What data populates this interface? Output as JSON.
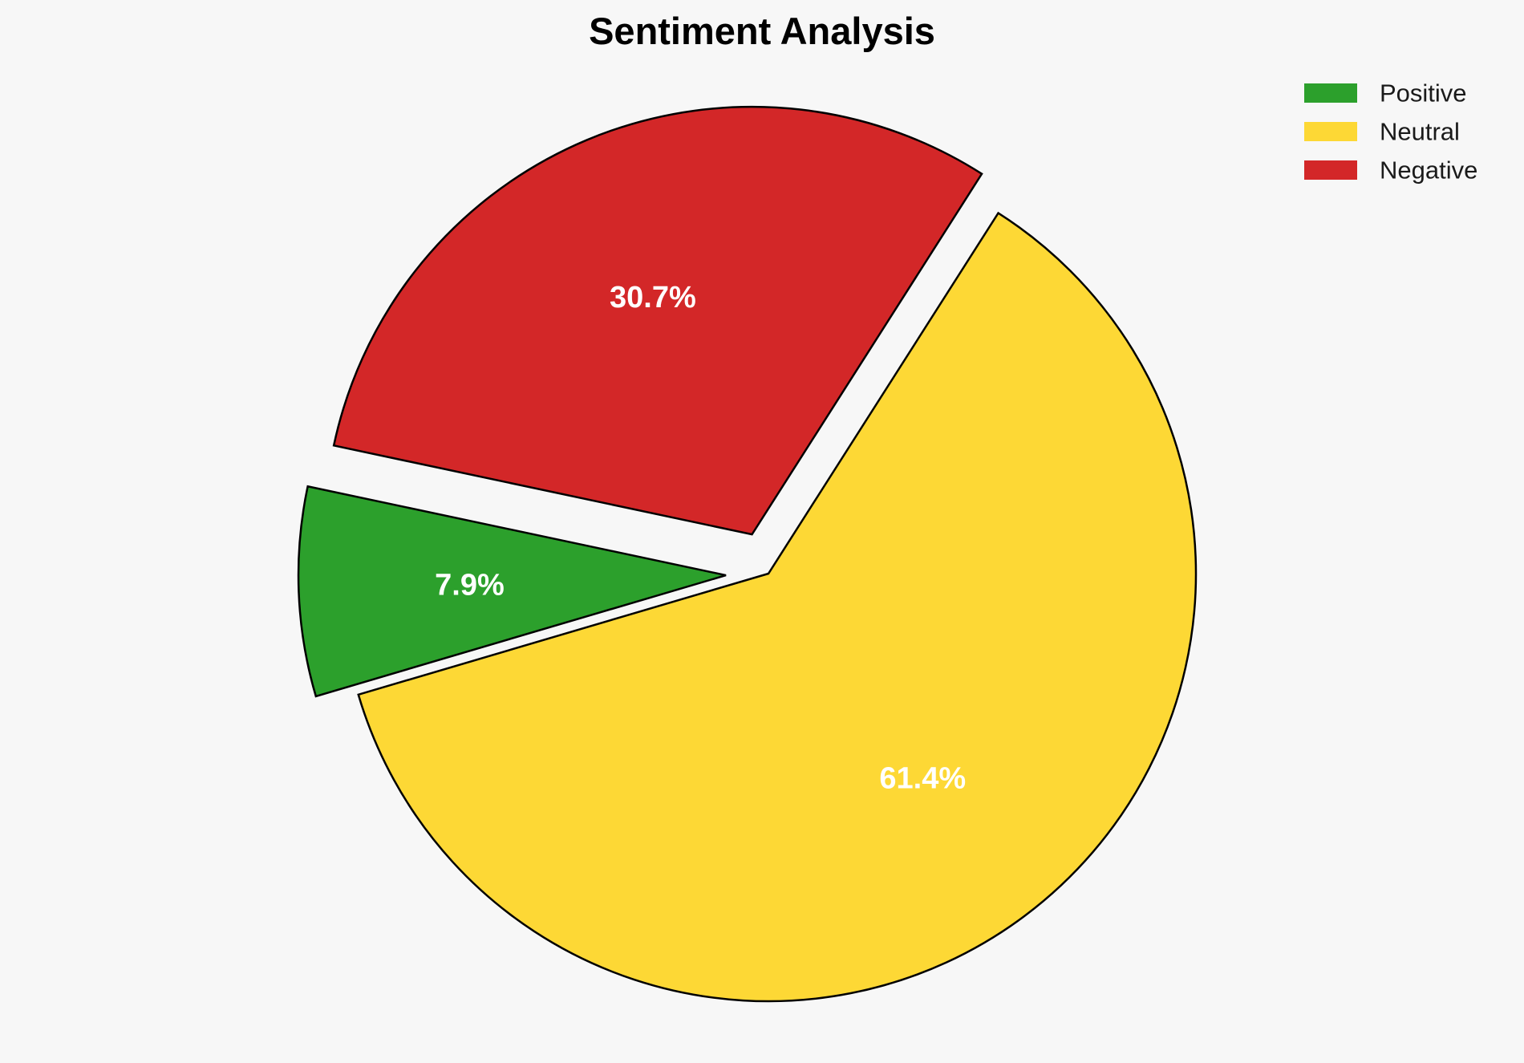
{
  "chart_data": {
    "type": "pie",
    "title": "Sentiment Analysis",
    "labels": [
      "Positive",
      "Neutral",
      "Negative"
    ],
    "values": [
      7.9,
      61.4,
      30.7
    ],
    "value_labels": [
      "7.9%",
      "61.4%",
      "30.7%"
    ],
    "colors": [
      "#2ca02c",
      "#fdd835",
      "#d32728"
    ],
    "exploded": [
      true,
      false,
      true
    ],
    "legend": "top-right",
    "edge_color": "#000000",
    "label_color": "#ffffff",
    "background": "#f7f7f7"
  }
}
